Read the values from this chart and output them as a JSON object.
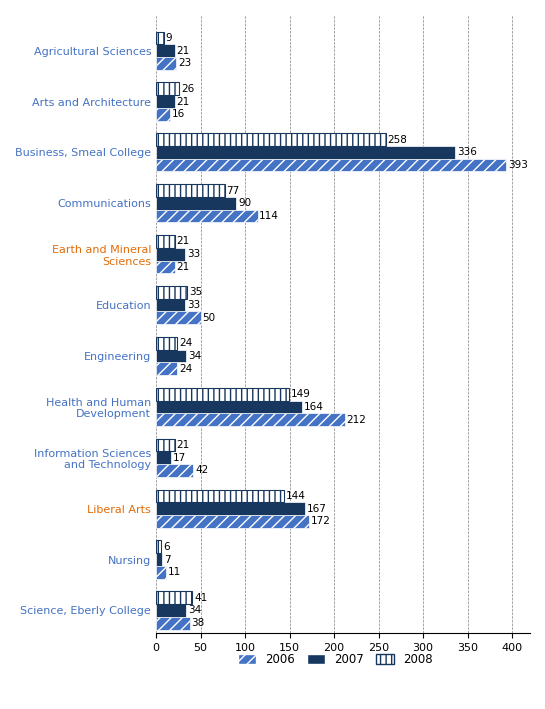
{
  "categories": [
    "Agricultural Sciences",
    "Arts and Architecture",
    "Business, Smeal College",
    "Communications",
    "Earth and Mineral\nSciences",
    "Education",
    "Engineering",
    "Health and Human\nDevelopment",
    "Information Sciences\nand Technology",
    "Liberal Arts",
    "Nursing",
    "Science, Eberly College"
  ],
  "label_colors": [
    "#4472c4",
    "#4472c4",
    "#4472c4",
    "#4472c4",
    "#e36c09",
    "#4472c4",
    "#4472c4",
    "#4472c4",
    "#4472c4",
    "#e36c09",
    "#4472c4",
    "#4472c4"
  ],
  "values_2006": [
    23,
    16,
    393,
    114,
    21,
    50,
    24,
    212,
    42,
    172,
    11,
    38
  ],
  "values_2007": [
    21,
    21,
    336,
    90,
    33,
    33,
    34,
    164,
    17,
    167,
    7,
    34
  ],
  "values_2008": [
    9,
    26,
    258,
    77,
    21,
    35,
    24,
    149,
    21,
    144,
    6,
    41
  ],
  "color_2006": "#4472c4",
  "color_2007": "#17375e",
  "color_2008_edge": "#17375e",
  "xlim": [
    0,
    420
  ],
  "xticks": [
    0,
    50,
    100,
    150,
    200,
    250,
    300,
    350,
    400
  ],
  "legend_labels": [
    "2006",
    "2007",
    "2008"
  ],
  "bar_height": 0.25,
  "label_fontsize": 7.5,
  "tick_fontsize": 8,
  "cat_fontsize": 8,
  "legend_fontsize": 8.5
}
